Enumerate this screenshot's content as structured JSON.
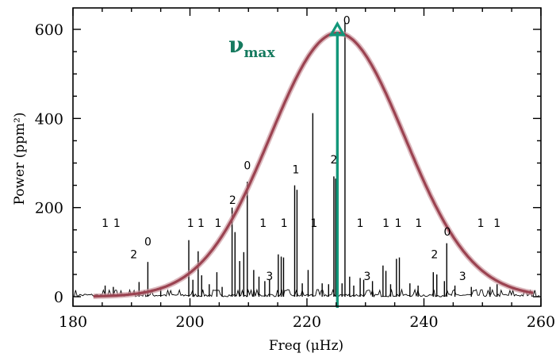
{
  "chart_data": {
    "type": "line",
    "xlabel": "Freq (μHz)",
    "ylabel": "Power (ppm²)",
    "xlim": [
      180,
      260
    ],
    "ylim": [
      0,
      620
    ],
    "x_ticks": [
      180,
      200,
      220,
      240,
      260
    ],
    "y_ticks": [
      0,
      200,
      400,
      600
    ],
    "grid": false,
    "series": [
      {
        "kind": "peaks",
        "x": [
          185.5,
          186.9,
          191.3,
          192.8,
          195.0,
          199.8,
          200.5,
          201.4,
          202.0,
          203.3,
          204.6,
          205.5,
          207.2,
          207.7,
          208.5,
          209.2,
          209.8,
          210.9,
          211.8,
          212.8,
          213.6,
          215.1,
          215.6,
          216.0,
          217.9,
          218.3,
          219.2,
          220.2,
          221.0,
          222.6,
          223.7,
          224.6,
          224.9,
          226.0,
          226.5,
          227.3,
          228.0,
          229.1,
          229.7,
          231.2,
          233.0,
          233.5,
          234.3,
          235.3,
          235.8,
          237.6,
          239.0,
          241.6,
          242.2,
          243.5,
          243.9,
          245.3,
          248.1,
          251.3,
          252.5
        ],
        "y": [
          25,
          22,
          33,
          78,
          22,
          127,
          38,
          102,
          48,
          28,
          55,
          22,
          200,
          145,
          80,
          100,
          258,
          60,
          45,
          35,
          38,
          95,
          90,
          88,
          250,
          240,
          30,
          60,
          412,
          30,
          28,
          270,
          265,
          30,
          615,
          45,
          25,
          42,
          38,
          35,
          70,
          58,
          28,
          85,
          88,
          30,
          25,
          55,
          50,
          35,
          120,
          25,
          22,
          22,
          28
        ]
      },
      {
        "kind": "envelope",
        "center": 225.2,
        "amplitude": 592,
        "sigma": 11.5
      }
    ],
    "numax": {
      "x": 225.2,
      "label": "ν",
      "subscript": "max"
    },
    "mode_labels": [
      {
        "x": 185.5,
        "y": 157,
        "text": "1"
      },
      {
        "x": 187.5,
        "y": 157,
        "text": "1"
      },
      {
        "x": 190.4,
        "y": 86,
        "text": "2"
      },
      {
        "x": 192.8,
        "y": 115,
        "text": "0"
      },
      {
        "x": 200.1,
        "y": 157,
        "text": "1"
      },
      {
        "x": 201.9,
        "y": 157,
        "text": "1"
      },
      {
        "x": 204.8,
        "y": 157,
        "text": "1"
      },
      {
        "x": 207.3,
        "y": 208,
        "text": "2"
      },
      {
        "x": 209.8,
        "y": 286,
        "text": "0"
      },
      {
        "x": 212.5,
        "y": 157,
        "text": "1"
      },
      {
        "x": 213.6,
        "y": 37,
        "text": "3"
      },
      {
        "x": 216.1,
        "y": 157,
        "text": "1"
      },
      {
        "x": 218.1,
        "y": 277,
        "text": "1"
      },
      {
        "x": 221.2,
        "y": 157,
        "text": "1"
      },
      {
        "x": 224.6,
        "y": 299,
        "text": "2"
      },
      {
        "x": 226.8,
        "y": 612,
        "text": "0"
      },
      {
        "x": 229.1,
        "y": 157,
        "text": "1"
      },
      {
        "x": 230.3,
        "y": 37,
        "text": "3"
      },
      {
        "x": 233.5,
        "y": 157,
        "text": "1"
      },
      {
        "x": 235.6,
        "y": 157,
        "text": "1"
      },
      {
        "x": 239.1,
        "y": 157,
        "text": "1"
      },
      {
        "x": 241.8,
        "y": 86,
        "text": "2"
      },
      {
        "x": 244.0,
        "y": 137,
        "text": "0"
      },
      {
        "x": 246.6,
        "y": 37,
        "text": "3"
      },
      {
        "x": 249.7,
        "y": 157,
        "text": "1"
      },
      {
        "x": 252.5,
        "y": 157,
        "text": "1"
      }
    ],
    "colors": {
      "envelope": "#9b4351",
      "envelope_glow": "#c9939b",
      "numax": "#12977a",
      "numax_text": "#167a5f",
      "peaks": "#000000"
    }
  }
}
